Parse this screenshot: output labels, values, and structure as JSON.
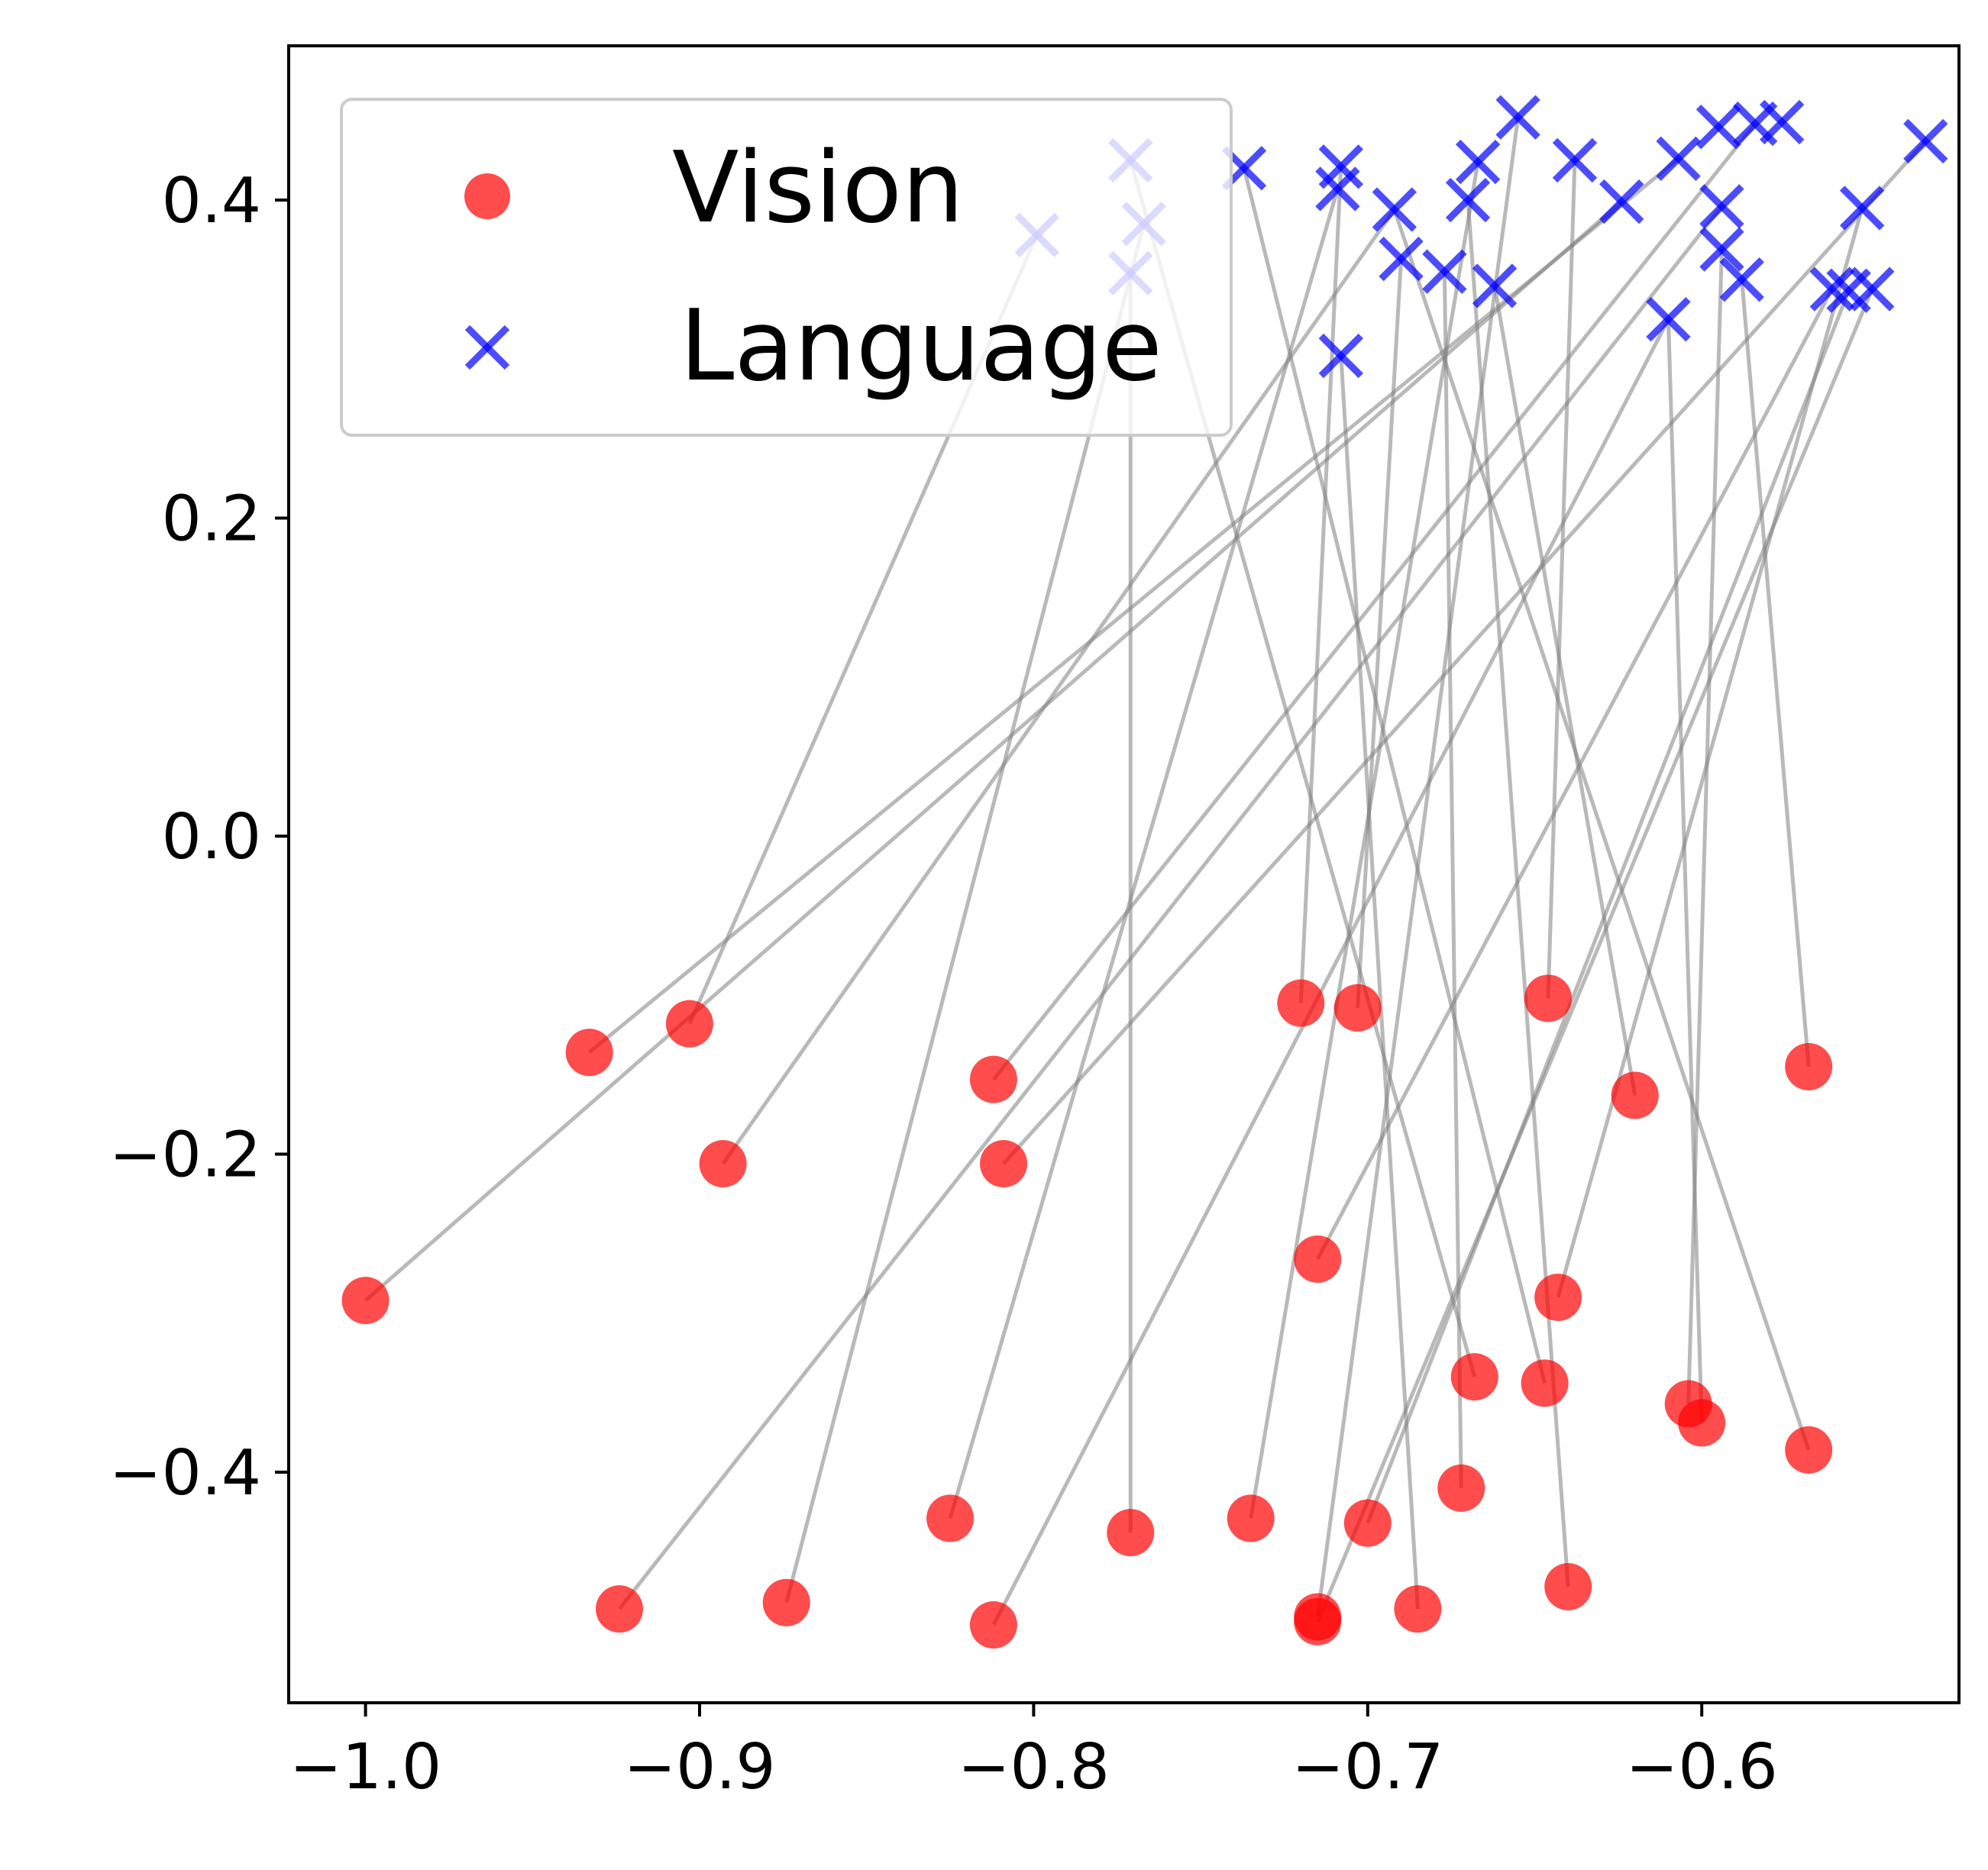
{
  "chart_data": {
    "type": "scatter",
    "title": "",
    "xlabel": "",
    "ylabel": "",
    "xlim": [
      -1.023,
      -0.523
    ],
    "ylim": [
      -0.545,
      0.497
    ],
    "grid": false,
    "legend": {
      "placement": "upper-left",
      "entries": [
        {
          "label": "Vision",
          "marker": "circle",
          "color": "#ff0000"
        },
        {
          "label": "Language",
          "marker": "x",
          "color": "#0000ff"
        }
      ]
    },
    "x_ticks": [
      {
        "value": -1.0,
        "label": "−1.0"
      },
      {
        "value": -0.9,
        "label": "−0.9"
      },
      {
        "value": -0.8,
        "label": "−0.8"
      },
      {
        "value": -0.7,
        "label": "−0.7"
      },
      {
        "value": -0.6,
        "label": "−0.6"
      }
    ],
    "y_ticks": [
      {
        "value": 0.4,
        "label": "0.4"
      },
      {
        "value": 0.2,
        "label": "0.2"
      },
      {
        "value": 0.0,
        "label": "0.0"
      },
      {
        "value": -0.2,
        "label": "−0.2"
      },
      {
        "value": -0.4,
        "label": "−0.4"
      }
    ],
    "series": [
      {
        "name": "Vision",
        "marker": "circle",
        "color": "#ff0000",
        "points": [
          [
            -1.0,
            -0.292
          ],
          [
            -0.933,
            -0.136
          ],
          [
            -0.903,
            -0.118
          ],
          [
            -0.893,
            -0.206
          ],
          [
            -0.924,
            -0.486
          ],
          [
            -0.874,
            -0.482
          ],
          [
            -0.825,
            -0.429
          ],
          [
            -0.812,
            -0.496
          ],
          [
            -0.812,
            -0.153
          ],
          [
            -0.809,
            -0.206
          ],
          [
            -0.771,
            -0.438
          ],
          [
            -0.735,
            -0.429
          ],
          [
            -0.72,
            -0.105
          ],
          [
            -0.715,
            -0.266
          ],
          [
            -0.715,
            -0.491
          ],
          [
            -0.715,
            -0.494
          ],
          [
            -0.703,
            -0.108
          ],
          [
            -0.7,
            -0.432
          ],
          [
            -0.685,
            -0.486
          ],
          [
            -0.672,
            -0.41
          ],
          [
            -0.668,
            -0.34
          ],
          [
            -0.646,
            -0.102
          ],
          [
            -0.647,
            -0.344
          ],
          [
            -0.643,
            -0.29
          ],
          [
            -0.64,
            -0.472
          ],
          [
            -0.62,
            -0.163
          ],
          [
            -0.604,
            -0.357
          ],
          [
            -0.6,
            -0.369
          ],
          [
            -0.568,
            -0.145
          ],
          [
            -0.568,
            -0.386
          ]
        ]
      },
      {
        "name": "Language",
        "marker": "x",
        "color": "#0000ff",
        "points": [
          [
            -0.799,
            0.378
          ],
          [
            -0.771,
            0.425
          ],
          [
            -0.767,
            0.385
          ],
          [
            -0.771,
            0.354
          ],
          [
            -0.737,
            0.42
          ],
          [
            -0.708,
            0.421
          ],
          [
            -0.709,
            0.407
          ],
          [
            -0.708,
            0.302
          ],
          [
            -0.692,
            0.394
          ],
          [
            -0.69,
            0.363
          ],
          [
            -0.677,
            0.355
          ],
          [
            -0.67,
            0.4
          ],
          [
            -0.667,
            0.424
          ],
          [
            -0.662,
            0.346
          ],
          [
            -0.655,
            0.452
          ],
          [
            -0.638,
            0.425
          ],
          [
            -0.624,
            0.399
          ],
          [
            -0.607,
            0.426
          ],
          [
            -0.61,
            0.325
          ],
          [
            -0.595,
            0.446
          ],
          [
            -0.594,
            0.396
          ],
          [
            -0.594,
            0.369
          ],
          [
            -0.588,
            0.35
          ],
          [
            -0.584,
            0.448
          ],
          [
            -0.576,
            0.449
          ],
          [
            -0.561,
            0.344
          ],
          [
            -0.556,
            0.343
          ],
          [
            -0.552,
            0.395
          ],
          [
            -0.549,
            0.344
          ],
          [
            -0.533,
            0.437
          ]
        ]
      }
    ],
    "connections": [
      [
        -1.0,
        -0.292,
        -0.624,
        0.399
      ],
      [
        -0.933,
        -0.136,
        -0.607,
        0.426
      ],
      [
        -0.903,
        -0.118,
        -0.799,
        0.378
      ],
      [
        -0.893,
        -0.206,
        -0.692,
        0.394
      ],
      [
        -0.924,
        -0.486,
        -0.594,
        0.396
      ],
      [
        -0.874,
        -0.482,
        -0.767,
        0.385
      ],
      [
        -0.825,
        -0.429,
        -0.709,
        0.407
      ],
      [
        -0.812,
        -0.496,
        -0.61,
        0.325
      ],
      [
        -0.812,
        -0.153,
        -0.584,
        0.448
      ],
      [
        -0.809,
        -0.206,
        -0.533,
        0.437
      ],
      [
        -0.771,
        -0.438,
        -0.771,
        0.354
      ],
      [
        -0.735,
        -0.429,
        -0.667,
        0.424
      ],
      [
        -0.72,
        -0.105,
        -0.708,
        0.421
      ],
      [
        -0.715,
        -0.266,
        -0.561,
        0.344
      ],
      [
        -0.715,
        -0.491,
        -0.655,
        0.452
      ],
      [
        -0.715,
        -0.494,
        -0.549,
        0.344
      ],
      [
        -0.703,
        -0.108,
        -0.69,
        0.363
      ],
      [
        -0.7,
        -0.432,
        -0.556,
        0.343
      ],
      [
        -0.685,
        -0.486,
        -0.708,
        0.302
      ],
      [
        -0.672,
        -0.41,
        -0.677,
        0.355
      ],
      [
        -0.668,
        -0.34,
        -0.771,
        0.425
      ],
      [
        -0.646,
        -0.102,
        -0.638,
        0.425
      ],
      [
        -0.647,
        -0.344,
        -0.737,
        0.42
      ],
      [
        -0.643,
        -0.29,
        -0.552,
        0.395
      ],
      [
        -0.64,
        -0.472,
        -0.67,
        0.4
      ],
      [
        -0.62,
        -0.163,
        -0.662,
        0.346
      ],
      [
        -0.604,
        -0.357,
        -0.594,
        0.369
      ],
      [
        -0.6,
        -0.369,
        -0.61,
        0.325
      ],
      [
        -0.568,
        -0.145,
        -0.588,
        0.35
      ],
      [
        -0.568,
        -0.386,
        -0.692,
        0.394
      ]
    ]
  }
}
